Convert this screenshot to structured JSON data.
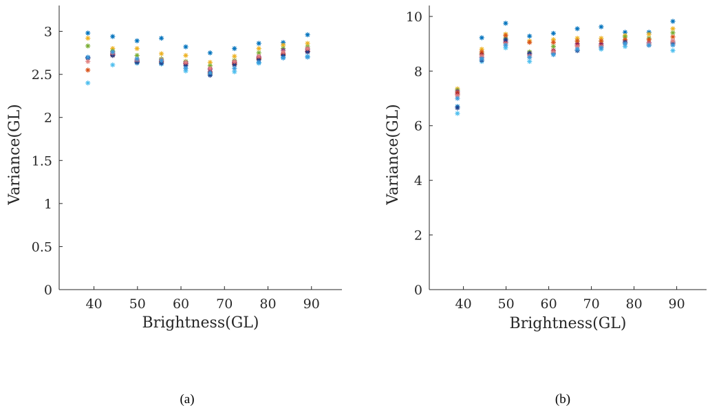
{
  "chart_data": [
    {
      "type": "scatter",
      "caption": "(a)",
      "xlabel": "Brightness(GL)",
      "ylabel": "Variance(GL)",
      "xlim": [
        32,
        97
      ],
      "ylim": [
        0,
        3.3
      ],
      "xticks": [
        40,
        50,
        60,
        70,
        80,
        90
      ],
      "yticks": [
        0,
        0.5,
        1,
        1.5,
        2,
        2.5,
        3
      ],
      "ytick_labels": [
        "0",
        "0.5",
        "1",
        "1.5",
        "2",
        "2.5",
        "3"
      ],
      "marker": "asterisk",
      "grid": false,
      "x": [
        38.6,
        44.3,
        49.9,
        55.5,
        61.1,
        66.7,
        72.3,
        77.9,
        83.5,
        89.1
      ],
      "series": [
        {
          "color": "#0072BD",
          "values": [
            2.98,
            2.94,
            2.89,
            2.92,
            2.82,
            2.75,
            2.8,
            2.86,
            2.87,
            2.96
          ]
        },
        {
          "color": "#EDB120",
          "values": [
            2.92,
            2.8,
            2.8,
            2.74,
            2.72,
            2.64,
            2.71,
            2.8,
            2.84,
            2.86
          ]
        },
        {
          "color": "#77AC30",
          "values": [
            2.83,
            2.77,
            2.72,
            2.68,
            2.65,
            2.6,
            2.66,
            2.75,
            2.8,
            2.82
          ]
        },
        {
          "color": "#7E2F8E",
          "values": [
            2.69,
            2.74,
            2.66,
            2.66,
            2.63,
            2.56,
            2.64,
            2.7,
            2.78,
            2.79
          ]
        },
        {
          "color": "#D95319",
          "values": [
            2.55,
            2.72,
            2.64,
            2.64,
            2.62,
            2.51,
            2.62,
            2.68,
            2.73,
            2.77
          ]
        },
        {
          "color": "#A2142F",
          "values": [
            2.69,
            2.73,
            2.65,
            2.65,
            2.62,
            2.53,
            2.63,
            2.69,
            2.74,
            2.77
          ]
        },
        {
          "color": "#4DBEEE",
          "values": [
            2.4,
            2.61,
            2.63,
            2.62,
            2.54,
            2.5,
            2.53,
            2.63,
            2.7,
            2.71
          ]
        },
        {
          "color": "#1F3F8C",
          "values": [
            2.69,
            2.72,
            2.64,
            2.63,
            2.6,
            2.49,
            2.61,
            2.67,
            2.72,
            2.76
          ]
        },
        {
          "color": "#E08080",
          "values": [
            2.65,
            2.75,
            2.67,
            2.67,
            2.64,
            2.57,
            2.65,
            2.71,
            2.76,
            2.8
          ]
        },
        {
          "color": "#3A9BDC",
          "values": [
            2.7,
            2.76,
            2.68,
            2.66,
            2.57,
            2.52,
            2.57,
            2.64,
            2.69,
            2.7
          ]
        }
      ]
    },
    {
      "type": "scatter",
      "caption": "(b)",
      "xlabel": "Brightness(GL)",
      "ylabel": "Variance(GL)",
      "xlim": [
        32,
        97
      ],
      "ylim": [
        0,
        10.4
      ],
      "xticks": [
        40,
        50,
        60,
        70,
        80,
        90
      ],
      "yticks": [
        0,
        2,
        4,
        6,
        8,
        10
      ],
      "ytick_labels": [
        "0",
        "2",
        "4",
        "6",
        "8",
        "10"
      ],
      "marker": "asterisk",
      "grid": false,
      "x": [
        38.6,
        44.3,
        49.9,
        55.5,
        61.1,
        66.7,
        72.3,
        77.9,
        83.5,
        89.1
      ],
      "series": [
        {
          "color": "#0072BD",
          "values": [
            6.7,
            9.22,
            9.75,
            9.28,
            9.38,
            9.55,
            9.62,
            9.42,
            9.42,
            9.82
          ]
        },
        {
          "color": "#EDB120",
          "values": [
            7.35,
            8.8,
            9.35,
            9.1,
            9.15,
            9.2,
            9.2,
            9.3,
            9.35,
            9.55
          ]
        },
        {
          "color": "#77AC30",
          "values": [
            7.3,
            8.65,
            9.2,
            8.7,
            8.9,
            9.1,
            9.1,
            9.25,
            9.2,
            9.4
          ]
        },
        {
          "color": "#7E2F8E",
          "values": [
            7.25,
            8.5,
            9.1,
            8.6,
            8.7,
            9.0,
            9.0,
            9.1,
            9.05,
            9.1
          ]
        },
        {
          "color": "#D95319",
          "values": [
            7.2,
            8.7,
            9.3,
            9.05,
            9.05,
            9.1,
            9.1,
            9.15,
            9.15,
            9.25
          ]
        },
        {
          "color": "#A2142F",
          "values": [
            7.15,
            8.6,
            9.05,
            8.65,
            8.75,
            8.95,
            8.95,
            9.05,
            9.0,
            9.0
          ]
        },
        {
          "color": "#4DBEEE",
          "values": [
            6.45,
            8.35,
            8.85,
            8.35,
            8.65,
            8.75,
            8.8,
            8.9,
            8.95,
            8.75
          ]
        },
        {
          "color": "#1F3F8C",
          "values": [
            6.65,
            8.4,
            9.15,
            8.65,
            8.65,
            8.75,
            8.9,
            9.05,
            8.95,
            9.05
          ]
        },
        {
          "color": "#E08080",
          "values": [
            7.1,
            8.55,
            9.0,
            8.55,
            8.7,
            8.9,
            8.9,
            9.0,
            9.0,
            9.1
          ]
        },
        {
          "color": "#3A9BDC",
          "values": [
            7.0,
            8.45,
            8.95,
            8.5,
            8.6,
            8.8,
            8.85,
            9.0,
            8.95,
            8.95
          ]
        }
      ]
    }
  ]
}
